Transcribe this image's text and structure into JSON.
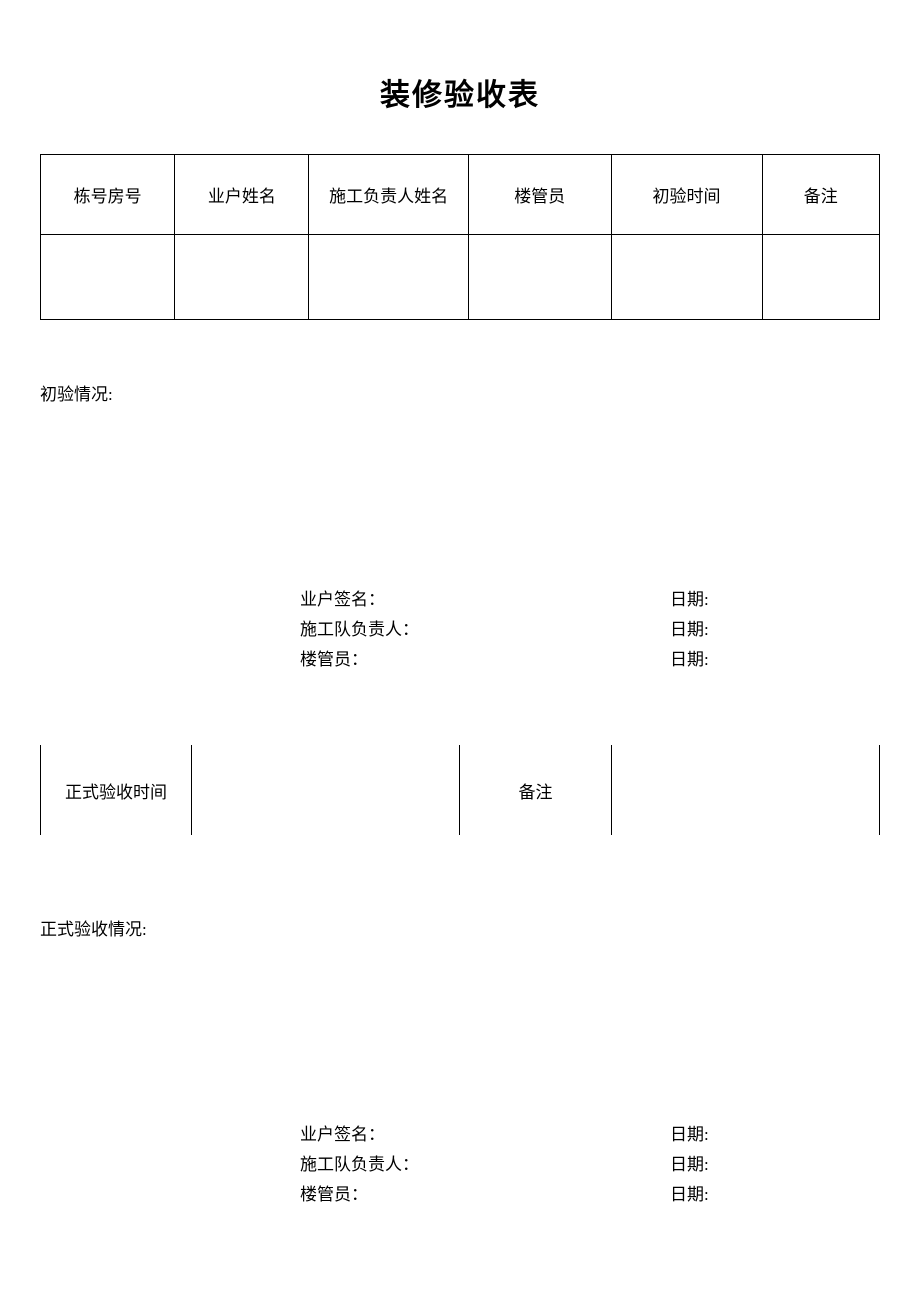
{
  "title": "装修验收表",
  "table1": {
    "headers": [
      "栋号房号",
      "业户姓名",
      "施工负责人姓名",
      "楼管员",
      "初验时间",
      "备注"
    ],
    "row": [
      "",
      "",
      "",
      "",
      "",
      ""
    ],
    "col_widths": [
      "16%",
      "16%",
      "19%",
      "17%",
      "18%",
      "14%"
    ]
  },
  "section1_label": "初验情况:",
  "sig1": {
    "rows": [
      {
        "left": "业户签名：",
        "right": "日期:"
      },
      {
        "left": "施工队负责人：",
        "right": "日期:"
      },
      {
        "left": "楼管员：",
        "right": "日期:"
      }
    ]
  },
  "table2": {
    "cells": [
      "正式验收时间",
      "",
      "备注",
      ""
    ],
    "col_widths": [
      "18%",
      "32%",
      "18%",
      "32%"
    ]
  },
  "section2_label": "正式验收情况:",
  "sig2": {
    "rows": [
      {
        "left": "业户签名：",
        "right": "日期:"
      },
      {
        "left": "施工队负责人：",
        "right": "日期:"
      },
      {
        "left": "楼管员：",
        "right": "日期:"
      }
    ]
  },
  "colors": {
    "text": "#000000",
    "border": "#000000",
    "background": "#ffffff"
  },
  "fonts": {
    "title_size": 30,
    "body_size": 17,
    "family": "SimSun"
  }
}
